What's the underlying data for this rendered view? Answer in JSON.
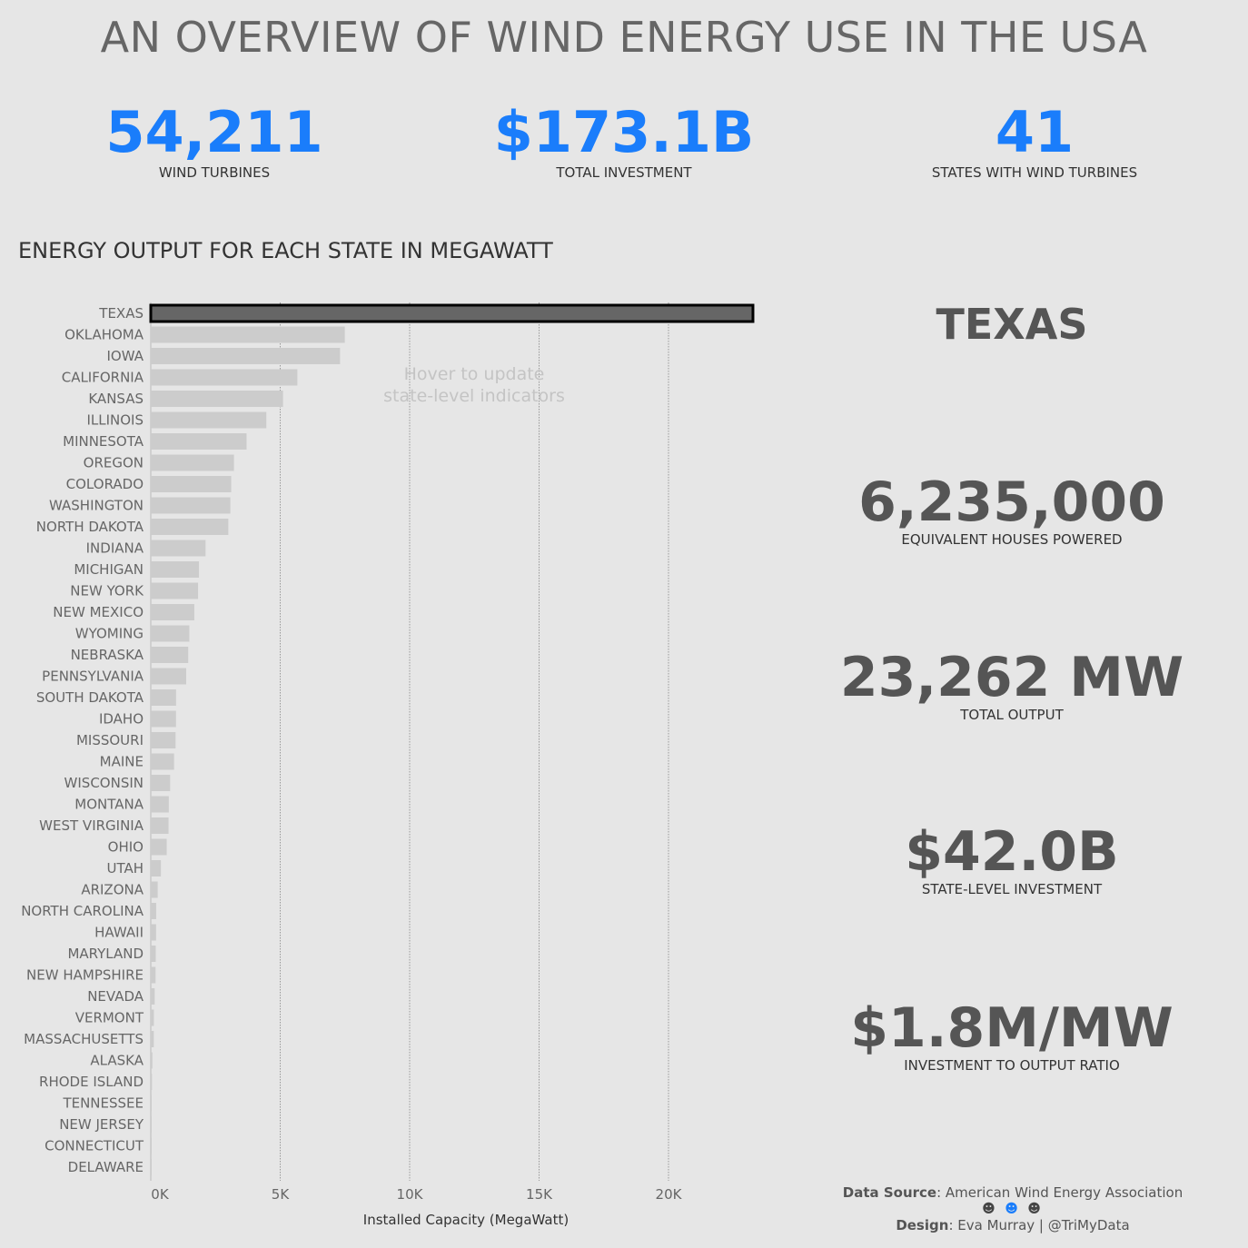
{
  "title": "AN OVERVIEW OF WIND ENERGY USE IN THE USA",
  "kpis": [
    {
      "value": "54,211",
      "label": "WIND TURBINES"
    },
    {
      "value": "$173.1B",
      "label": "TOTAL INVESTMENT"
    },
    {
      "value": "41",
      "label": "STATES WITH WIND TURBINES"
    }
  ],
  "section_title": "ENERGY OUTPUT FOR EACH STATE IN MEGAWATT",
  "hint": "Hover to update state-level indicators",
  "selected": {
    "state": "TEXAS",
    "houses": {
      "value": "6,235,000",
      "label": "EQUIVALENT HOUSES POWERED"
    },
    "output": {
      "value": "23,262 MW",
      "label": "TOTAL OUTPUT"
    },
    "investment": {
      "value": "$42.0B",
      "label": "STATE-LEVEL INVESTMENT"
    },
    "ratio": {
      "value": "$1.8M/MW",
      "label": "INVESTMENT TO OUTPUT RATIO"
    }
  },
  "footer": {
    "source_label": "Data Source",
    "source": ": American Wind Energy Association",
    "smileys": [
      "☻",
      "☻",
      "☻"
    ],
    "design_label": "Design",
    "design": ": Eva Murray | @TriMyData"
  },
  "colors": {
    "accent": "#1a7dfb",
    "bar": "#cccccc",
    "bar_selected": "#666666",
    "bar_selected_border": "#000000"
  },
  "chart_data": {
    "type": "bar",
    "orientation": "horizontal",
    "xlabel": "Installed Capacity (MegaWatt)",
    "x_ticks": [
      0,
      5000,
      10000,
      15000,
      20000
    ],
    "x_tick_labels": [
      "0K",
      "5K",
      "10K",
      "15K",
      "20K"
    ],
    "xlim": [
      0,
      24000
    ],
    "grid": "vertical dotted",
    "highlighted": "TEXAS",
    "categories": [
      "TEXAS",
      "OKLAHOMA",
      "IOWA",
      "CALIFORNIA",
      "KANSAS",
      "ILLINOIS",
      "MINNESOTA",
      "OREGON",
      "COLORADO",
      "WASHINGTON",
      "NORTH DAKOTA",
      "INDIANA",
      "MICHIGAN",
      "NEW YORK",
      "NEW MEXICO",
      "WYOMING",
      "NEBRASKA",
      "PENNSYLVANIA",
      "SOUTH DAKOTA",
      "IDAHO",
      "MISSOURI",
      "MAINE",
      "WISCONSIN",
      "MONTANA",
      "WEST VIRGINIA",
      "OHIO",
      "UTAH",
      "ARIZONA",
      "NORTH CAROLINA",
      "HAWAII",
      "MARYLAND",
      "NEW HAMPSHIRE",
      "NEVADA",
      "VERMONT",
      "MASSACHUSETTS",
      "ALASKA",
      "RHODE ISLAND",
      "TENNESSEE",
      "NEW JERSEY",
      "CONNECTICUT",
      "DELAWARE"
    ],
    "values": [
      23262,
      7495,
      7312,
      5662,
      5110,
      4464,
      3699,
      3213,
      3106,
      3075,
      2996,
      2117,
      1862,
      1827,
      1682,
      1489,
      1446,
      1369,
      977,
      973,
      959,
      900,
      748,
      695,
      686,
      615,
      391,
      268,
      208,
      206,
      191,
      185,
      152,
      119,
      115,
      62,
      45,
      29,
      9,
      5,
      2
    ]
  }
}
